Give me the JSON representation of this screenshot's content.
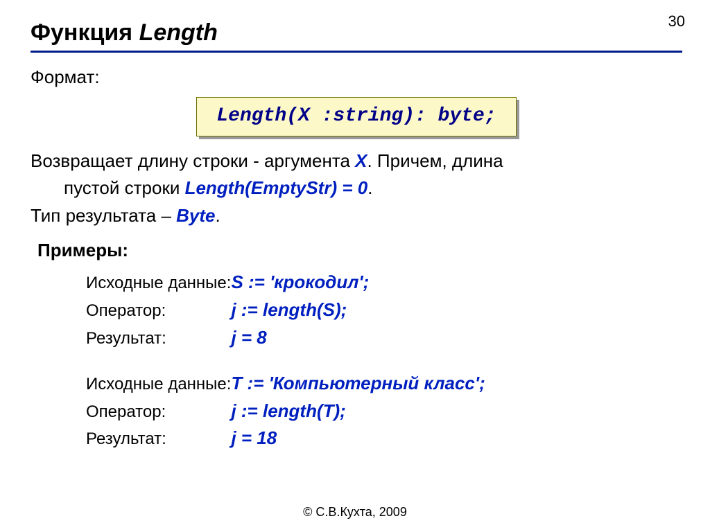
{
  "page_number": "30",
  "title_prefix": "Функция ",
  "title_fn": "Length",
  "format_label": "Формат:",
  "signature": "Length(X :string): byte;",
  "desc_p1_a": "Возвращает длину строки - аргумента ",
  "desc_p1_x": "X",
  "desc_p1_b": ". Причем, длина",
  "desc_p2_a": "пустой строки ",
  "desc_p2_expr": "Length(EmptyStr) = 0",
  "desc_p2_b": ".",
  "desc_p3_a": "Тип результата – ",
  "desc_p3_type": "Byte",
  "desc_p3_b": ".",
  "examples_label": "Примеры:",
  "labels": {
    "input": "Исходные данные:",
    "operator": "Оператор:",
    "result": "Результат:"
  },
  "ex1": {
    "input": "S := 'крокодил';",
    "operator": "j := length(S);",
    "result": "j = 8"
  },
  "ex2": {
    "input": "T := 'Компьютерный класс';",
    "operator": "j := length(T);",
    "result": "j = 18"
  },
  "footer": "© С.В.Кухта, 2009",
  "colors": {
    "rule": "#001a8a",
    "accent_text": "#001fbf",
    "sig_bg": "#fdf8c8",
    "sig_border": "#6b6b00",
    "sig_shadow": "#999999"
  }
}
